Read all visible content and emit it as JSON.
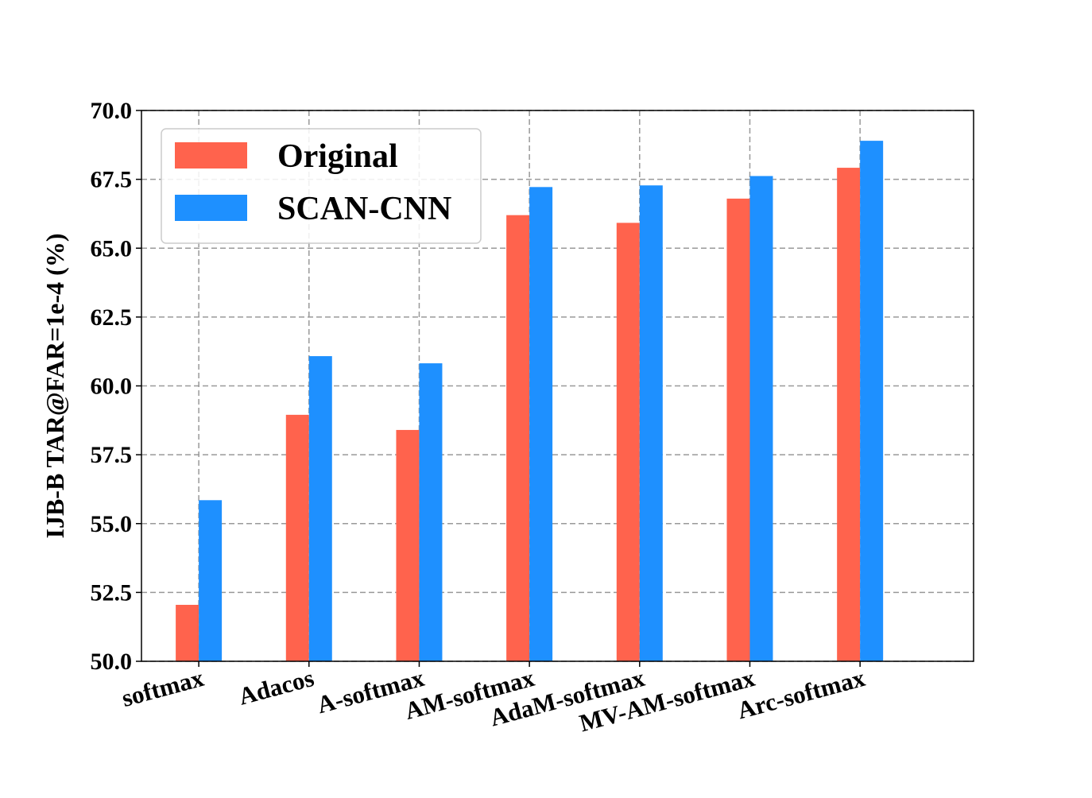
{
  "chart_data": {
    "type": "bar",
    "title": "",
    "xlabel": "",
    "ylabel": "IJB-B TAR@FAR=1e-4 (%)",
    "ylim": [
      50.0,
      70.0
    ],
    "yticks": [
      "50.0",
      "52.5",
      "55.0",
      "57.5",
      "60.0",
      "62.5",
      "65.0",
      "67.5",
      "70.0"
    ],
    "grid": true,
    "legend_position": "top-left",
    "categories": [
      "softmax",
      "Adacos",
      "A-softmax",
      "AM-softmax",
      "AdaM-softmax",
      "MV-AM-softmax",
      "Arc-softmax"
    ],
    "series": [
      {
        "name": "Original",
        "color": "#ff634d",
        "values": [
          52.05,
          58.95,
          58.4,
          66.2,
          65.92,
          66.8,
          67.92
        ]
      },
      {
        "name": "SCAN-CNN",
        "color": "#1e90ff",
        "values": [
          55.85,
          61.08,
          60.82,
          67.22,
          67.28,
          67.62,
          68.9
        ]
      }
    ]
  }
}
